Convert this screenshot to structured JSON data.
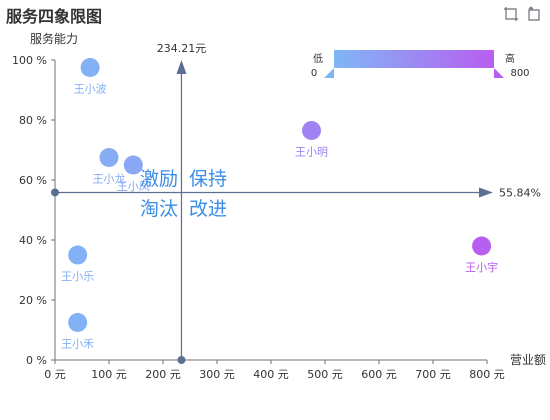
{
  "title": "服务四象限图",
  "toolbox": [
    {
      "name": "zoom-icon"
    },
    {
      "name": "restore-icon"
    }
  ],
  "visual_map": {
    "low_label": "低",
    "high_label": "高",
    "min": "0",
    "max": "800",
    "color_low": "#7fb7f5",
    "color_high": "#b85ef0"
  },
  "quadrant_labels": {
    "top_left": "激励",
    "top_right": "保持",
    "bottom_left": "淘汰",
    "bottom_right": "改进",
    "color": "#3a8ee6"
  },
  "chart_data": {
    "type": "scatter",
    "title": "服务四象限图",
    "xlabel": "营业额",
    "ylabel": "服务能力",
    "xlim": [
      0,
      800
    ],
    "ylim": [
      0,
      100
    ],
    "x_ticks": [
      "0 元",
      "100 元",
      "200 元",
      "300 元",
      "400 元",
      "500 元",
      "600 元",
      "700 元",
      "800 元"
    ],
    "y_ticks": [
      "0 %",
      "20 %",
      "40 %",
      "60 %",
      "80 %",
      "100 %"
    ],
    "avg_x": 234.21,
    "avg_x_label": "234.21元",
    "avg_y": 55.84,
    "avg_y_label": "55.84%",
    "points": [
      {
        "name": "王小波",
        "x": 65,
        "y": 97.5
      },
      {
        "name": "王小龙",
        "x": 100,
        "y": 67.5
      },
      {
        "name": "王小凤",
        "x": 145,
        "y": 65
      },
      {
        "name": "王小明",
        "x": 475,
        "y": 76.5
      },
      {
        "name": "王小乐",
        "x": 42,
        "y": 35
      },
      {
        "name": "王小禾",
        "x": 42,
        "y": 12.5
      },
      {
        "name": "王小宇",
        "x": 790,
        "y": 38
      }
    ]
  }
}
